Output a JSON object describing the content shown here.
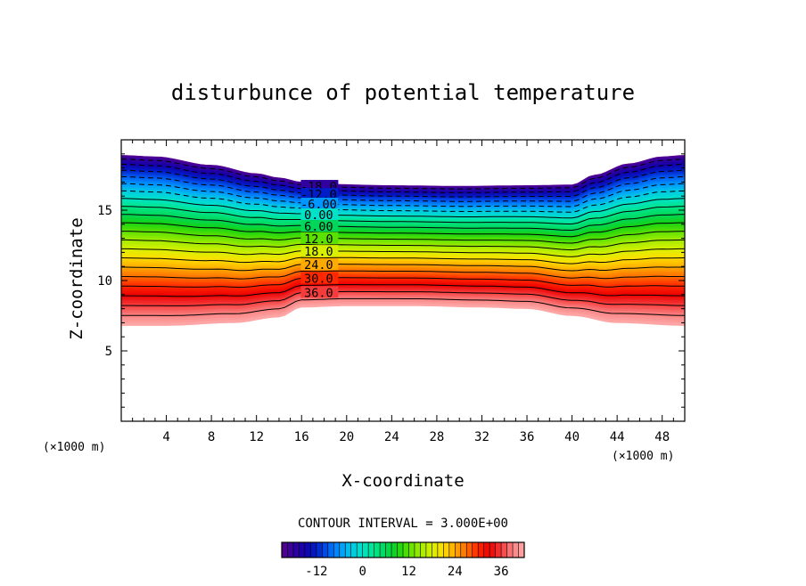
{
  "title": "disturbunce of potential temperature",
  "chart_data": {
    "type": "contour",
    "title": "disturbunce of potential temperature",
    "xlabel": "X-coordinate",
    "ylabel": "Z-coordinate",
    "x_unit": "(×1000 m)",
    "x_unit_right": "(×1000 m)",
    "xlim": [
      0,
      50
    ],
    "ylim": [
      0,
      20
    ],
    "x_ticks": [
      4,
      8,
      12,
      16,
      20,
      24,
      28,
      32,
      36,
      40,
      44,
      48
    ],
    "x_tick_labels": [
      "4",
      "8",
      "12",
      "16",
      "20",
      "24",
      "28",
      "32",
      "36",
      "40",
      "44",
      "48"
    ],
    "y_ticks": [
      5,
      10,
      15
    ],
    "y_tick_labels": [
      "5",
      "10",
      "15"
    ],
    "value_range": [
      -21,
      42
    ],
    "contour_interval_text": "CONTOUR INTERVAL = 3.000E+00",
    "contour_interval": 3.0,
    "contour_labels": [
      "-18.0",
      "-12.0",
      "-6.00",
      "0.00",
      "6.00",
      "12.0",
      "18.0",
      "24.0",
      "30.0",
      "36.0"
    ],
    "contour_label_values": [
      -18,
      -12,
      -6,
      0,
      6,
      12,
      18,
      24,
      30,
      36
    ],
    "domain_top_z": [
      [
        0,
        18.9
      ],
      [
        3,
        18.8
      ],
      [
        8,
        18.2
      ],
      [
        12,
        17.6
      ],
      [
        14,
        17.3
      ],
      [
        16,
        17.0
      ],
      [
        18,
        16.85
      ],
      [
        24,
        16.75
      ],
      [
        30,
        16.7
      ],
      [
        36,
        16.75
      ],
      [
        40,
        16.8
      ],
      [
        42,
        17.5
      ],
      [
        45,
        18.3
      ],
      [
        48,
        18.8
      ],
      [
        50,
        18.9
      ]
    ],
    "domain_bottom_z": [
      [
        0,
        6.8
      ],
      [
        4,
        6.8
      ],
      [
        10,
        7.0
      ],
      [
        14,
        7.4
      ],
      [
        16,
        8.1
      ],
      [
        20,
        8.2
      ],
      [
        26,
        8.2
      ],
      [
        32,
        8.1
      ],
      [
        36,
        8.0
      ],
      [
        40,
        7.5
      ],
      [
        44,
        7.0
      ],
      [
        50,
        6.8
      ]
    ],
    "colorbar": {
      "min": -21,
      "max": 42,
      "ticks": [
        -12,
        0,
        12,
        24,
        36
      ],
      "tick_labels": [
        "-12",
        "0",
        "12",
        "24",
        "36"
      ],
      "colors": [
        "#5a008c",
        "#1e00b4",
        "#0050ff",
        "#00b4c8",
        "#00e68c",
        "#32dc00",
        "#c8f000",
        "#ffb400",
        "#ff3200",
        "#ff8c8c"
      ]
    }
  }
}
